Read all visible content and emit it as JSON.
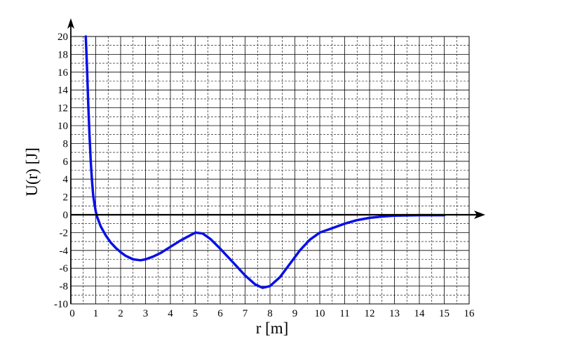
{
  "chart_data": {
    "type": "line",
    "xlabel": "r [m]",
    "ylabel": "U(r) [J]",
    "xlim": [
      0,
      16
    ],
    "ylim": [
      -10,
      20
    ],
    "x_ticks": [
      0,
      1,
      2,
      3,
      4,
      5,
      6,
      7,
      8,
      9,
      10,
      11,
      12,
      13,
      14,
      15,
      16
    ],
    "y_ticks": [
      20,
      18,
      16,
      14,
      12,
      10,
      8,
      6,
      4,
      2,
      0,
      -2,
      -4,
      -6,
      -8,
      -10
    ],
    "grid": true,
    "series": [
      {
        "color": "#0a10e6",
        "x": [
          0.6,
          0.65,
          0.7,
          0.75,
          0.8,
          0.85,
          0.9,
          0.95,
          1.0,
          1.05,
          1.2,
          1.4,
          1.6,
          1.8,
          2.0,
          2.2,
          2.5,
          2.8,
          3.0,
          3.3,
          3.6,
          4.0,
          4.4,
          4.8,
          5.0,
          5.3,
          5.6,
          6.0,
          6.5,
          7.0,
          7.4,
          7.7,
          8.0,
          8.4,
          8.8,
          9.2,
          9.6,
          10.0,
          10.5,
          11.0,
          11.5,
          12.0,
          12.5,
          13.0,
          14.0,
          15.0
        ],
        "y": [
          20,
          16.5,
          12.5,
          9.0,
          6.0,
          3.8,
          2.2,
          1.2,
          0.4,
          -0.2,
          -1.3,
          -2.3,
          -3.1,
          -3.7,
          -4.2,
          -4.6,
          -5.0,
          -5.1,
          -5.0,
          -4.7,
          -4.3,
          -3.6,
          -2.9,
          -2.3,
          -2.0,
          -2.1,
          -2.7,
          -3.8,
          -5.3,
          -6.8,
          -7.8,
          -8.2,
          -8.0,
          -7.0,
          -5.5,
          -4.0,
          -2.8,
          -2.0,
          -1.5,
          -1.0,
          -0.6,
          -0.35,
          -0.2,
          -0.1,
          -0.05,
          -0.05
        ]
      }
    ]
  },
  "colors": {
    "curve": "#0a10e6",
    "axis": "#000000",
    "grid": "#000000"
  }
}
